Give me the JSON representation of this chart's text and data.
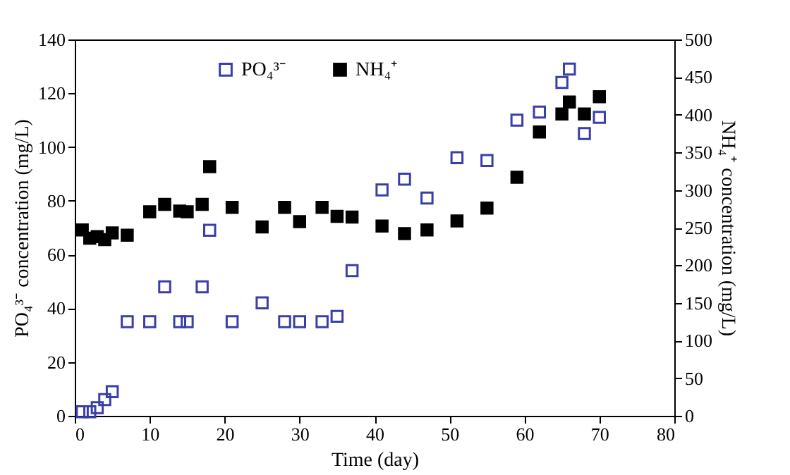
{
  "chart_data": {
    "type": "scatter",
    "xlabel": "Time (day)",
    "ylabel": "PO₄³⁻ concentration (mg/L)",
    "y2label": "NH₄⁺ concentration (mg/L)",
    "x": [
      1,
      2,
      3,
      4,
      5,
      7,
      10,
      12,
      14,
      15,
      17,
      18,
      21,
      25,
      28,
      30,
      33,
      35,
      37,
      41,
      44,
      47,
      51,
      55,
      59,
      62,
      65,
      66,
      68,
      70
    ],
    "series": [
      {
        "name": "PO₄³⁻",
        "color": "#3a3fa8",
        "marker": "square",
        "values": [
          1.5,
          1.5,
          3,
          6,
          9,
          35,
          35,
          48,
          35,
          35,
          48,
          69,
          35,
          42,
          35,
          35,
          35,
          37,
          54,
          84,
          88,
          81,
          96,
          95,
          110,
          113,
          124,
          129,
          105,
          111
        ]
      },
      {
        "name": "NH₄⁺",
        "color": "#000000",
        "axis": "y2",
        "marker": "square",
        "values": [
          247,
          236,
          238,
          234,
          243,
          240,
          271,
          281,
          272,
          271,
          281,
          331,
          277,
          251,
          277,
          258,
          277,
          265,
          264,
          252,
          242,
          247,
          259,
          276,
          317,
          377,
          401,
          417,
          401,
          424
        ]
      }
    ],
    "xlim": [
      0,
      80
    ],
    "xticks": [
      0,
      10,
      20,
      30,
      40,
      50,
      60,
      70,
      80
    ],
    "ylim": [
      0,
      140
    ],
    "yticks": [
      0,
      20,
      40,
      60,
      80,
      100,
      120,
      140
    ],
    "y2lim": [
      0,
      500
    ],
    "y2ticks": [
      0,
      50,
      100,
      150,
      200,
      250,
      300,
      350,
      400,
      450,
      500
    ],
    "grid": false,
    "legend": "top"
  }
}
